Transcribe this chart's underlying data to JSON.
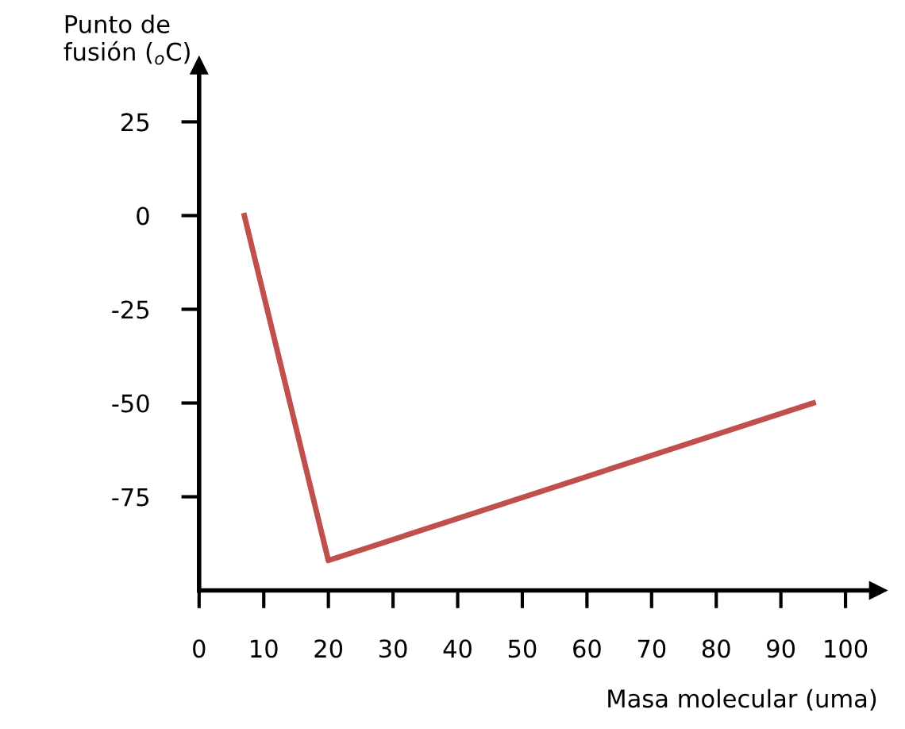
{
  "chart_data": {
    "type": "line",
    "xlabel": "Masa molecular (uma)",
    "ylabel": "Punto de\nfusión ($_{o}$C)",
    "series": [
      {
        "color": "#c0504d",
        "x": [
          7,
          20,
          95
        ],
        "values": [
          0,
          -92,
          -50
        ]
      }
    ],
    "xlim": [
      0,
      105
    ],
    "ylim": [
      -100,
      40
    ],
    "xticks": [
      0,
      10,
      20,
      30,
      40,
      50,
      60,
      70,
      80,
      90,
      100
    ],
    "yticks": [
      -75,
      -50,
      -25,
      0,
      25
    ],
    "grid": false,
    "legend": false,
    "marker": "none",
    "line_style": "solid"
  }
}
